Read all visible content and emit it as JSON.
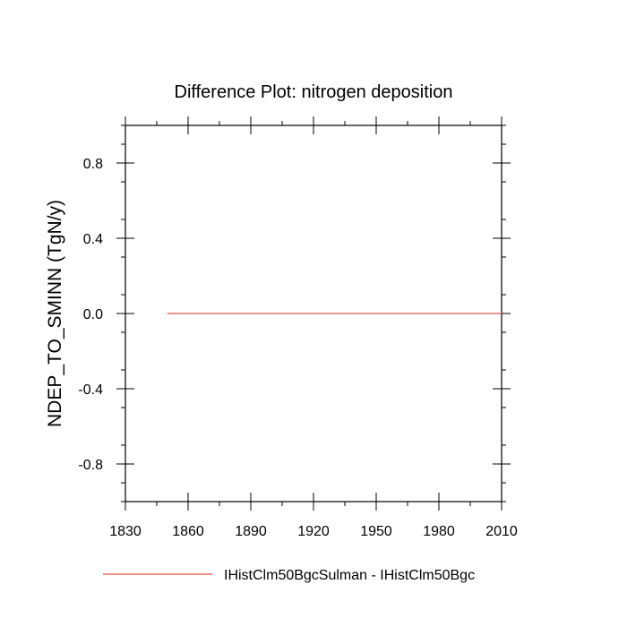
{
  "chart_data": {
    "type": "line",
    "title": "Difference Plot: nitrogen deposition",
    "ylabel": "NDEP_TO_SMINN  (TgN/y)",
    "xlabel": "",
    "xlim": [
      1830,
      2010
    ],
    "ylim": [
      -1.0,
      1.0
    ],
    "x_ticks": [
      1830,
      1860,
      1890,
      1920,
      1950,
      1980,
      2010
    ],
    "x_tick_labels": [
      "1830",
      "1860",
      "1890",
      "1920",
      "1950",
      "1980",
      "2010"
    ],
    "y_ticks": [
      0.8,
      0.4,
      0.0,
      -0.4,
      -0.8
    ],
    "y_tick_labels": [
      "0.8",
      "0.4",
      "0.0",
      "-0.4",
      "-0.8"
    ],
    "grid": false,
    "legend_position": "bottom",
    "series": [
      {
        "name": "IHistClm50BgcSulman - IHistClm50Bgc",
        "color": "#e8706a",
        "x": [
          1850,
          2010
        ],
        "y": [
          0.0,
          0.0
        ]
      }
    ]
  }
}
